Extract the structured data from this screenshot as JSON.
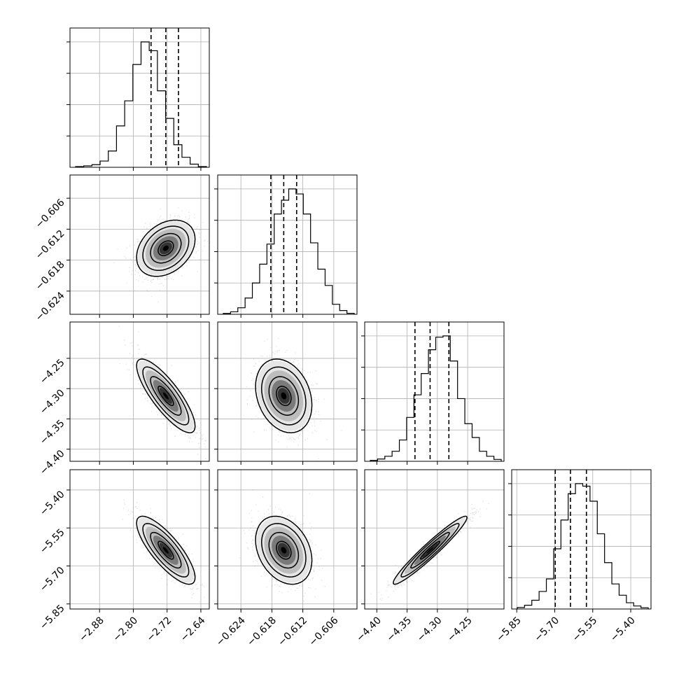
{
  "chart_data": {
    "type": "corner",
    "grid": true,
    "params": [
      {
        "range": [
          -2.95,
          -2.62
        ],
        "ticks": [
          "-2.88",
          "-2.80",
          "-2.72",
          "-2.64"
        ],
        "quantiles": [
          -2.758,
          -2.723,
          -2.693
        ],
        "hist": [
          0.006,
          0.011,
          0.021,
          0.05,
          0.13,
          0.33,
          0.53,
          0.82,
          1.0,
          0.93,
          0.61,
          0.39,
          0.18,
          0.08,
          0.025,
          0.006
        ]
      },
      {
        "range": [
          -0.6285,
          -0.6015
        ],
        "ticks": [
          "-0.624",
          "-0.618",
          "-0.612",
          "-0.606"
        ],
        "quantiles": [
          -0.6182,
          -0.6157,
          -0.6132
        ],
        "hist": [
          0.007,
          0.02,
          0.052,
          0.13,
          0.25,
          0.4,
          0.56,
          0.8,
          0.91,
          1.0,
          0.96,
          0.8,
          0.57,
          0.36,
          0.23,
          0.08,
          0.03,
          0.008
        ]
      },
      {
        "range": [
          -4.42,
          -4.19
        ],
        "ticks": [
          "-4.40",
          "-4.35",
          "-4.30",
          "-4.25"
        ],
        "quantiles": [
          -4.337,
          -4.312,
          -4.281
        ],
        "hist": [
          0.007,
          0.018,
          0.04,
          0.08,
          0.17,
          0.35,
          0.53,
          0.7,
          0.89,
          0.99,
          1.0,
          0.8,
          0.5,
          0.3,
          0.19,
          0.08,
          0.04,
          0.015
        ]
      },
      {
        "range": [
          -5.87,
          -5.32
        ],
        "ticks": [
          "-5.85",
          "-5.70",
          "-5.55",
          "-5.40"
        ],
        "quantiles": [
          -5.698,
          -5.638,
          -5.575
        ],
        "hist": [
          0.012,
          0.03,
          0.07,
          0.14,
          0.24,
          0.48,
          0.71,
          0.92,
          1.0,
          0.98,
          0.86,
          0.6,
          0.37,
          0.2,
          0.11,
          0.05,
          0.024,
          0.01
        ]
      }
    ],
    "pairs": [
      {
        "row": 1,
        "col": 0,
        "mean": [
          -2.723,
          -0.6157
        ],
        "sd": [
          0.033,
          0.0026
        ],
        "corr": 0.32
      },
      {
        "row": 2,
        "col": 0,
        "mean": [
          -2.723,
          -4.312
        ],
        "sd": [
          0.033,
          0.029
        ],
        "corr": -0.82
      },
      {
        "row": 2,
        "col": 1,
        "mean": [
          -0.6157,
          -4.312
        ],
        "sd": [
          0.0026,
          0.029
        ],
        "corr": -0.25
      },
      {
        "row": 3,
        "col": 0,
        "mean": [
          -2.723,
          -5.638
        ],
        "sd": [
          0.033,
          0.064
        ],
        "corr": -0.8
      },
      {
        "row": 3,
        "col": 1,
        "mean": [
          -0.6157,
          -5.638
        ],
        "sd": [
          0.0026,
          0.064
        ],
        "corr": -0.3
      },
      {
        "row": 3,
        "col": 2,
        "mean": [
          -4.312,
          -5.638
        ],
        "sd": [
          0.029,
          0.064
        ],
        "corr": 0.96
      }
    ]
  }
}
